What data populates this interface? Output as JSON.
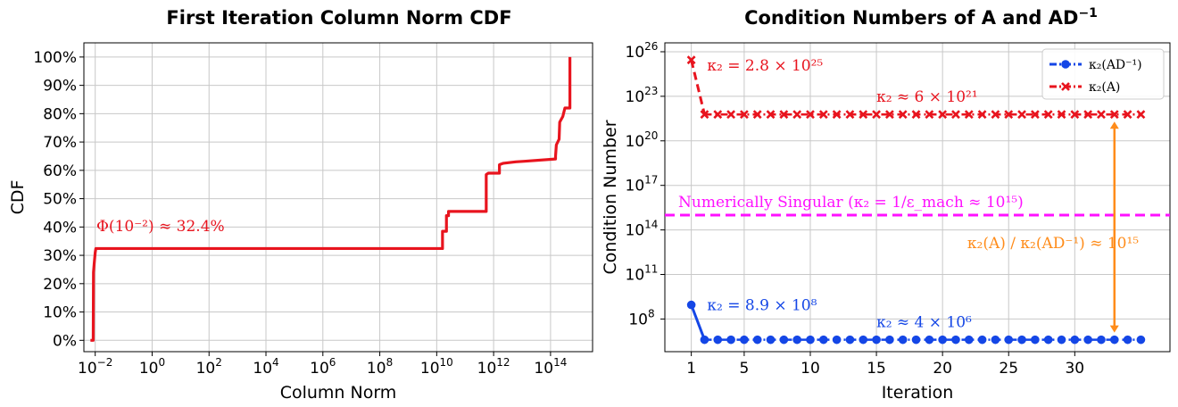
{
  "chart_data": [
    {
      "type": "line",
      "title": "First Iteration Column Norm CDF",
      "xlabel": "Column Norm",
      "ylabel": "CDF",
      "xscale": "log",
      "xlim": [
        0.004,
        3000000000000000.0
      ],
      "ylim": [
        -4,
        105
      ],
      "grid": true,
      "x_ticks": [
        {
          "value": 0.01,
          "base": "10",
          "exp": "−2"
        },
        {
          "value": 1,
          "base": "10",
          "exp": "0"
        },
        {
          "value": 100,
          "base": "10",
          "exp": "2"
        },
        {
          "value": 10000,
          "base": "10",
          "exp": "4"
        },
        {
          "value": 1000000,
          "base": "10",
          "exp": "6"
        },
        {
          "value": 100000000,
          "base": "10",
          "exp": "8"
        },
        {
          "value": 10000000000,
          "base": "10",
          "exp": "10"
        },
        {
          "value": 1000000000000,
          "base": "10",
          "exp": "12"
        },
        {
          "value": 100000000000000,
          "base": "10",
          "exp": "14"
        }
      ],
      "y_ticks": [
        {
          "value": 0,
          "label": "0%"
        },
        {
          "value": 10,
          "label": "10%"
        },
        {
          "value": 20,
          "label": "20%"
        },
        {
          "value": 30,
          "label": "30%"
        },
        {
          "value": 40,
          "label": "40%"
        },
        {
          "value": 50,
          "label": "50%"
        },
        {
          "value": 60,
          "label": "60%"
        },
        {
          "value": 70,
          "label": "70%"
        },
        {
          "value": 80,
          "label": "80%"
        },
        {
          "value": 90,
          "label": "90%"
        },
        {
          "value": 100,
          "label": "100%"
        }
      ],
      "series": [
        {
          "color": "#e8141e",
          "points": [
            [
              0.0068,
              0
            ],
            [
              0.0085,
              0
            ],
            [
              0.0085,
              0.3
            ],
            [
              0.0087,
              24
            ],
            [
              0.0092,
              27
            ],
            [
              0.0096,
              29
            ],
            [
              0.01,
              31
            ],
            [
              0.0105,
              32.4
            ],
            [
              16000000000.0,
              32.4
            ],
            [
              16000000000.0,
              38.5
            ],
            [
              22000000000.0,
              38.5
            ],
            [
              22000000000.0,
              44
            ],
            [
              26000000000.0,
              44
            ],
            [
              26000000000.0,
              45.5
            ],
            [
              550000000000.0,
              45.5
            ],
            [
              550000000000.0,
              58.5
            ],
            [
              650000000000.0,
              59
            ],
            [
              1600000000000.0,
              59
            ],
            [
              1600000000000.0,
              62
            ],
            [
              2200000000000.0,
              62.5
            ],
            [
              6000000000000.0,
              63
            ],
            [
              12000000000000.0,
              63.2
            ],
            [
              150000000000000.0,
              64
            ],
            [
              150000000000000.0,
              65
            ],
            [
              160000000000000.0,
              69
            ],
            [
              200000000000000.0,
              71
            ],
            [
              210000000000000.0,
              77
            ],
            [
              270000000000000.0,
              79
            ],
            [
              320000000000000.0,
              82
            ],
            [
              480000000000000.0,
              82
            ],
            [
              480000000000000.0,
              100
            ]
          ]
        }
      ],
      "annotations": [
        {
          "text": "Φ(10⁻²) ≈ 32.4%",
          "x": 0.011,
          "y": 38.5,
          "color": "#e8141e"
        }
      ]
    },
    {
      "type": "line",
      "title": "Condition Numbers of A and AD",
      "title_sup": "−1",
      "xlabel": "Iteration",
      "ylabel": "Condition Number",
      "yscale": "log",
      "xlim": [
        -1,
        37.2
      ],
      "ylim_exp": [
        5.8,
        26.6
      ],
      "grid": true,
      "x_ticks": [
        1,
        5,
        10,
        15,
        20,
        25,
        30
      ],
      "y_ticks": [
        {
          "exp": 8,
          "base": "10",
          "label": "8"
        },
        {
          "exp": 11,
          "base": "10",
          "label": "11"
        },
        {
          "exp": 14,
          "base": "10",
          "label": "14"
        },
        {
          "exp": 17,
          "base": "10",
          "label": "17"
        },
        {
          "exp": 20,
          "base": "10",
          "label": "20"
        },
        {
          "exp": 23,
          "base": "10",
          "label": "23"
        },
        {
          "exp": 26,
          "base": "10",
          "label": "26"
        }
      ],
      "legend_position": "upper right",
      "series": [
        {
          "name": "κ₂(AD⁻¹)",
          "color": "#1446e6",
          "marker": "circle",
          "first_value": 890000000.0,
          "steady_value": 4000000.0,
          "iterations": [
            1,
            2,
            3,
            4,
            5,
            6,
            7,
            8,
            9,
            10,
            11,
            12,
            13,
            14,
            15,
            16,
            17,
            18,
            19,
            20,
            21,
            22,
            23,
            24,
            25,
            26,
            27,
            28,
            29,
            30,
            31,
            32,
            33,
            34,
            35
          ]
        },
        {
          "name": "κ₂(A)",
          "color": "#e8141e",
          "marker": "x",
          "first_value": 2.8e+25,
          "steady_value": 6e+21,
          "iterations": [
            1,
            2,
            3,
            4,
            5,
            6,
            7,
            8,
            9,
            10,
            11,
            12,
            13,
            14,
            15,
            16,
            17,
            18,
            19,
            20,
            21,
            22,
            23,
            24,
            25,
            26,
            27,
            28,
            29,
            30,
            31,
            32,
            33,
            34,
            35
          ]
        }
      ],
      "hline": {
        "value": 1000000000000000.0,
        "color": "#ff10ff",
        "label": "Numerically Singular (κ₂ = 1/ε_mach ≈ 10¹⁵)"
      },
      "ratio_arrow": {
        "x": 33,
        "from": 4000000.0,
        "to": 6e+21,
        "color": "#ff8c1a",
        "label": "κ₂(A) / κ₂(AD⁻¹) ≈ 10¹⁵"
      },
      "annotations": [
        {
          "text": "κ₂ = 2.8 × 10²⁵",
          "color": "#e8141e"
        },
        {
          "text": "κ₂ ≈ 6 × 10²¹",
          "color": "#e8141e"
        },
        {
          "text": "κ₂ = 8.9 × 10⁸",
          "color": "#1446e6"
        },
        {
          "text": "κ₂ ≈ 4 × 10⁶",
          "color": "#1446e6"
        }
      ]
    }
  ]
}
